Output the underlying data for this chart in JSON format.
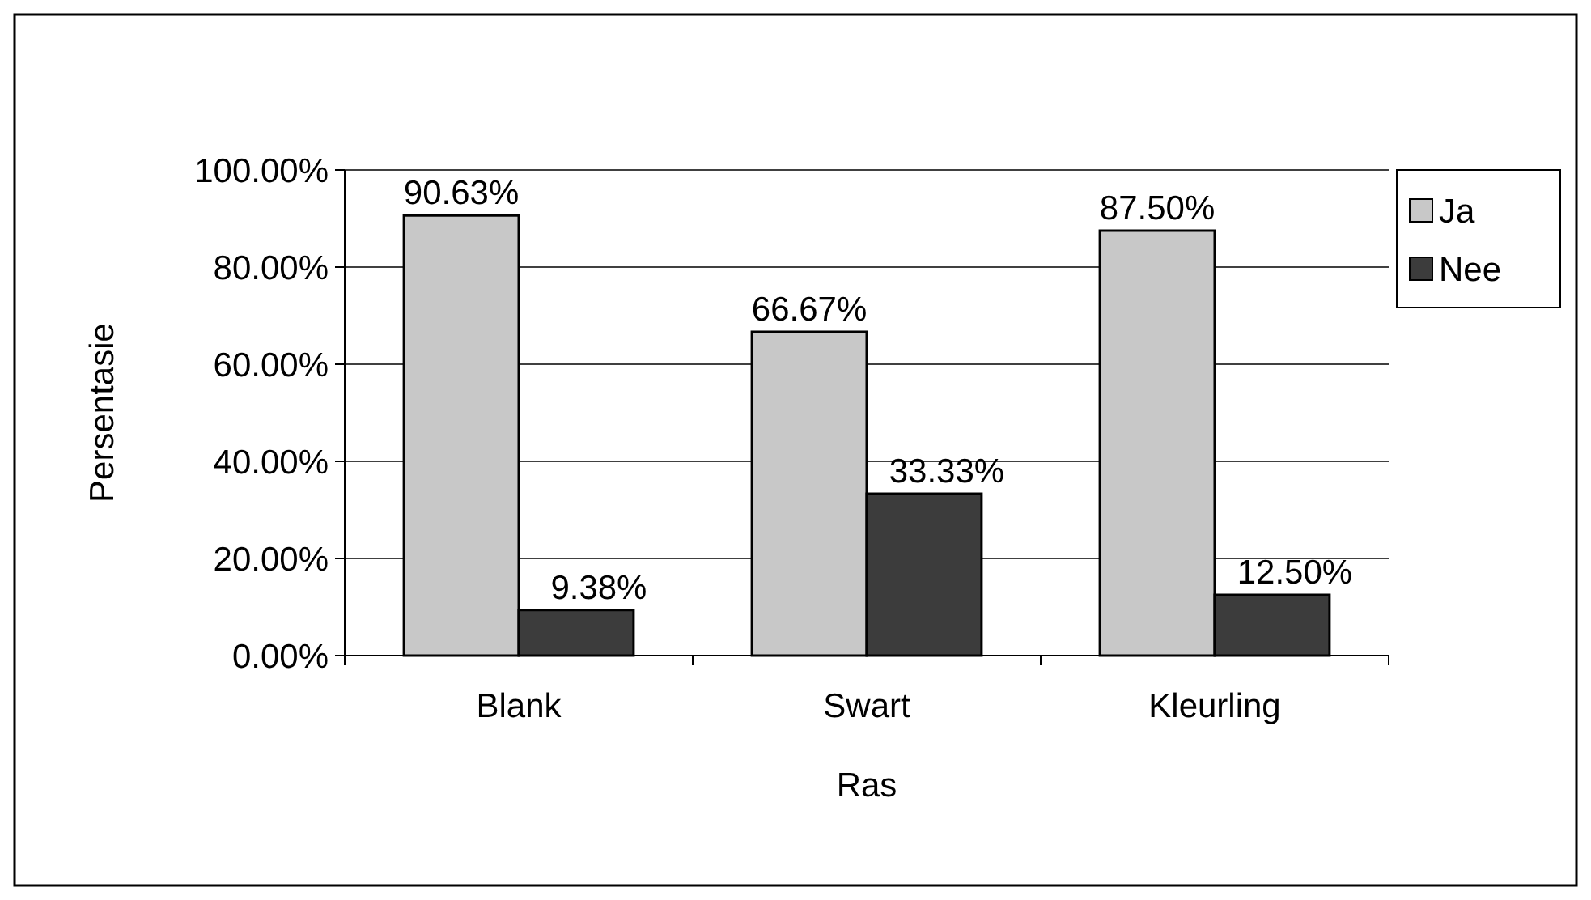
{
  "chart_data": {
    "type": "bar",
    "xlabel": "Ras",
    "ylabel": "Persentasie",
    "categories": [
      "Blank",
      "Swart",
      "Kleurling"
    ],
    "series": [
      {
        "name": "Ja",
        "color": "#c8c8c8",
        "values": [
          90.63,
          66.67,
          87.5
        ],
        "value_labels": [
          "90.63%",
          "66.67%",
          "87.50%"
        ]
      },
      {
        "name": "Nee",
        "color": "#3c3c3c",
        "values": [
          9.38,
          33.33,
          12.5
        ],
        "value_labels": [
          "9.38%",
          "33.33%",
          "12.50%"
        ]
      }
    ],
    "ylim": [
      0,
      100
    ],
    "yticks": [
      {
        "value": 0,
        "label": "0.00%"
      },
      {
        "value": 20,
        "label": "20.00%"
      },
      {
        "value": 40,
        "label": "40.00%"
      },
      {
        "value": 60,
        "label": "60.00%"
      },
      {
        "value": 80,
        "label": "80.00%"
      },
      {
        "value": 100,
        "label": "100.00%"
      }
    ],
    "grid": "y",
    "legend": "right"
  }
}
